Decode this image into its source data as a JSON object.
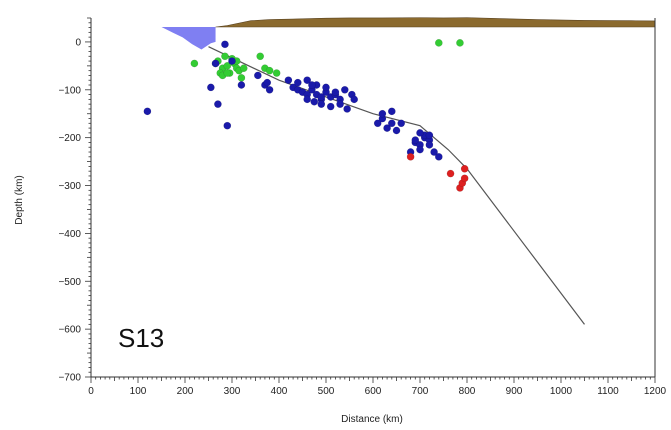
{
  "chart_data": {
    "type": "scatter",
    "title": "",
    "xlabel": "Distance (km)",
    "ylabel": "Depth (km)",
    "xlim": [
      0,
      1200
    ],
    "ylim": [
      -700,
      50
    ],
    "x_ticks": [
      0,
      100,
      200,
      300,
      400,
      500,
      600,
      700,
      800,
      900,
      1000,
      1100,
      1200
    ],
    "y_ticks": [
      0,
      -100,
      -200,
      -300,
      -400,
      -500,
      -600,
      -700
    ],
    "grid": false,
    "annotation": "S13",
    "colors": {
      "ocean": "#7f7ff2",
      "land": "#8b6a2e",
      "slab_line": "#555555",
      "green": "#33cc33",
      "blue": "#1a1aaa",
      "red": "#dd2020"
    },
    "slab_line": {
      "x": [
        250,
        400,
        500,
        600,
        700,
        760,
        800,
        1050
      ],
      "y": [
        -10,
        -80,
        -115,
        -150,
        -175,
        -225,
        -265,
        -590
      ]
    },
    "ocean_profile": {
      "x": [
        0,
        150,
        175,
        195,
        215,
        235,
        245,
        255,
        265
      ],
      "y": [
        48,
        48,
        35,
        25,
        10,
        -2,
        5,
        12,
        15
      ]
    },
    "land_profile": {
      "x": [
        265,
        290,
        340,
        380,
        430,
        500,
        550,
        620,
        700,
        750,
        800,
        870,
        950,
        1050,
        1150,
        1200
      ],
      "y": [
        15,
        25,
        60,
        68,
        72,
        78,
        80,
        80,
        82,
        80,
        82,
        75,
        68,
        62,
        60,
        58
      ]
    },
    "series": [
      {
        "name": "",
        "color": "green",
        "x": [
          220,
          270,
          280,
          285,
          290,
          295,
          300,
          305,
          310,
          315,
          320,
          325,
          265,
          275,
          280,
          290,
          310,
          360,
          370,
          380,
          395,
          740,
          785
        ],
        "y": [
          -45,
          -40,
          -55,
          -30,
          -50,
          -65,
          -35,
          -45,
          -55,
          -60,
          -75,
          -55,
          -45,
          -65,
          -70,
          -65,
          -40,
          -30,
          -55,
          -60,
          -65,
          -2,
          -2
        ]
      },
      {
        "name": "",
        "color": "blue",
        "x": [
          120,
          255,
          265,
          270,
          285,
          290,
          300,
          320,
          355,
          370,
          375,
          380,
          420,
          430,
          440,
          450,
          460,
          470,
          480,
          490,
          500,
          510,
          520,
          530,
          440,
          460,
          480,
          500,
          520,
          540,
          555,
          460,
          475,
          490,
          510,
          530,
          545,
          560,
          470,
          490,
          610,
          620,
          630,
          640,
          650,
          620,
          640,
          660,
          690,
          700,
          710,
          720,
          680,
          700,
          720,
          730,
          690,
          710,
          740,
          700,
          720
        ],
        "y": [
          -145,
          -95,
          -45,
          -130,
          -5,
          -175,
          -40,
          -90,
          -70,
          -90,
          -85,
          -100,
          -80,
          -95,
          -100,
          -105,
          -110,
          -100,
          -110,
          -120,
          -105,
          -115,
          -110,
          -120,
          -85,
          -80,
          -90,
          -95,
          -105,
          -100,
          -110,
          -120,
          -125,
          -130,
          -135,
          -130,
          -140,
          -120,
          -90,
          -115,
          -170,
          -160,
          -180,
          -170,
          -185,
          -150,
          -145,
          -170,
          -210,
          -215,
          -200,
          -205,
          -230,
          -225,
          -215,
          -230,
          -205,
          -195,
          -240,
          -190,
          -195
        ]
      },
      {
        "name": "",
        "color": "red",
        "x": [
          680,
          765,
          785,
          795,
          790,
          795
        ],
        "y": [
          -240,
          -275,
          -305,
          -265,
          -295,
          -285
        ]
      }
    ]
  }
}
